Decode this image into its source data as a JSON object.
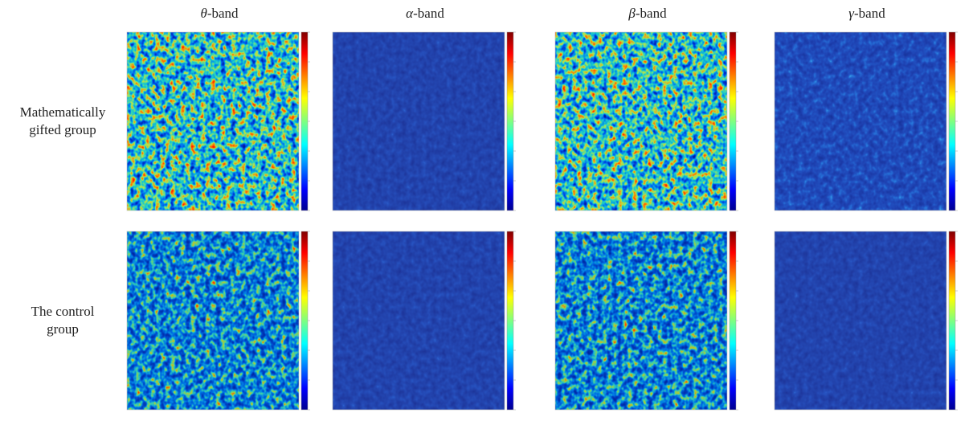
{
  "columns": [
    {
      "symbol": "θ",
      "suffix": "-band"
    },
    {
      "symbol": "α",
      "suffix": "-band"
    },
    {
      "symbol": "β",
      "suffix": "-band"
    },
    {
      "symbol": "γ",
      "suffix": "-band"
    }
  ],
  "rows": [
    {
      "lines": [
        "Mathematically",
        "gifted group"
      ]
    },
    {
      "lines": [
        "The control",
        "group"
      ]
    }
  ]
}
